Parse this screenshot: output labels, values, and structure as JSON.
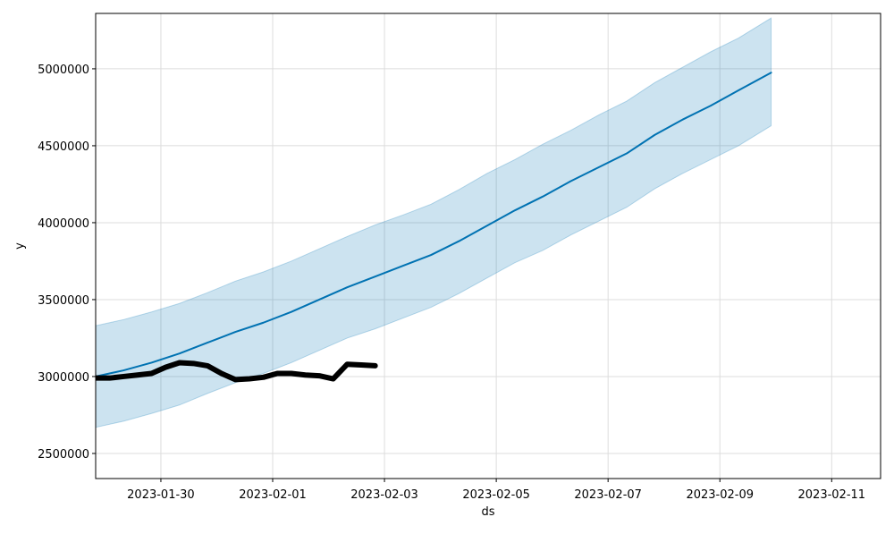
{
  "chart_data": {
    "type": "line",
    "xlabel": "ds",
    "ylabel": "y",
    "xlim": [
      "2023-01-28T20:00",
      "2023-02-11T21:00"
    ],
    "xticks": [
      "2023-01-30",
      "2023-02-01",
      "2023-02-03",
      "2023-02-05",
      "2023-02-07",
      "2023-02-09",
      "2023-02-11"
    ],
    "ylim": [
      2337000,
      5360000
    ],
    "yticks": [
      2500000,
      3000000,
      3500000,
      4000000,
      4500000,
      5000000
    ],
    "grid": true,
    "interval": {
      "color": "#0072B2",
      "x": [
        "2023-01-28T20:00",
        "2023-01-29T08:00",
        "2023-01-29T20:00",
        "2023-01-30T08:00",
        "2023-01-30T20:00",
        "2023-01-31T08:00",
        "2023-01-31T20:00",
        "2023-02-01T08:00",
        "2023-02-01T20:00",
        "2023-02-02T08:00",
        "2023-02-02T20:00",
        "2023-02-03T08:00",
        "2023-02-03T20:00",
        "2023-02-04T08:00",
        "2023-02-04T20:00",
        "2023-02-05T08:00",
        "2023-02-05T20:00",
        "2023-02-06T08:00",
        "2023-02-06T20:00",
        "2023-02-07T08:00",
        "2023-02-07T20:00",
        "2023-02-08T08:00",
        "2023-02-08T20:00",
        "2023-02-09T08:00",
        "2023-02-09T22:00"
      ],
      "upper": [
        3330000,
        3370000,
        3420000,
        3475000,
        3545000,
        3620000,
        3680000,
        3750000,
        3830000,
        3910000,
        3985000,
        4050000,
        4120000,
        4215000,
        4320000,
        4410000,
        4510000,
        4600000,
        4700000,
        4790000,
        4910000,
        5010000,
        5110000,
        5200000,
        5330000
      ],
      "lower": [
        2670000,
        2710000,
        2760000,
        2815000,
        2890000,
        2960000,
        3020000,
        3090000,
        3170000,
        3250000,
        3310000,
        3380000,
        3450000,
        3540000,
        3640000,
        3740000,
        3820000,
        3920000,
        4010000,
        4100000,
        4220000,
        4320000,
        4410000,
        4500000,
        4630000
      ]
    },
    "series": [
      {
        "color": "#0072B2",
        "x": [
          "2023-01-28T20:00",
          "2023-01-29T08:00",
          "2023-01-29T20:00",
          "2023-01-30T08:00",
          "2023-01-30T20:00",
          "2023-01-31T08:00",
          "2023-01-31T20:00",
          "2023-02-01T08:00",
          "2023-02-01T20:00",
          "2023-02-02T08:00",
          "2023-02-02T20:00",
          "2023-02-03T08:00",
          "2023-02-03T20:00",
          "2023-02-04T08:00",
          "2023-02-04T20:00",
          "2023-02-05T08:00",
          "2023-02-05T20:00",
          "2023-02-06T08:00",
          "2023-02-06T20:00",
          "2023-02-07T08:00",
          "2023-02-07T20:00",
          "2023-02-08T08:00",
          "2023-02-08T20:00",
          "2023-02-09T08:00",
          "2023-02-09T22:00"
        ],
        "values": [
          3000000,
          3040000,
          3090000,
          3150000,
          3220000,
          3290000,
          3350000,
          3420000,
          3500000,
          3580000,
          3650000,
          3720000,
          3790000,
          3880000,
          3980000,
          4080000,
          4170000,
          4270000,
          4360000,
          4450000,
          4570000,
          4670000,
          4760000,
          4860000,
          4975000
        ]
      },
      {
        "color": "#000000",
        "x": [
          "2023-01-28T20:00",
          "2023-01-29T02:00",
          "2023-01-29T08:00",
          "2023-01-29T14:00",
          "2023-01-29T20:00",
          "2023-01-30T02:00",
          "2023-01-30T08:00",
          "2023-01-30T14:00",
          "2023-01-30T20:00",
          "2023-01-31T02:00",
          "2023-01-31T08:00",
          "2023-01-31T14:00",
          "2023-01-31T20:00",
          "2023-02-01T02:00",
          "2023-02-01T08:00",
          "2023-02-01T14:00",
          "2023-02-01T20:00",
          "2023-02-02T02:00",
          "2023-02-02T08:00",
          "2023-02-02T14:00",
          "2023-02-02T20:00"
        ],
        "values": [
          2990000,
          2990000,
          3000000,
          3010000,
          3020000,
          3060000,
          3090000,
          3085000,
          3070000,
          3020000,
          2980000,
          2985000,
          2995000,
          3020000,
          3020000,
          3010000,
          3005000,
          2985000,
          3080000,
          3075000,
          3070000
        ]
      }
    ]
  }
}
